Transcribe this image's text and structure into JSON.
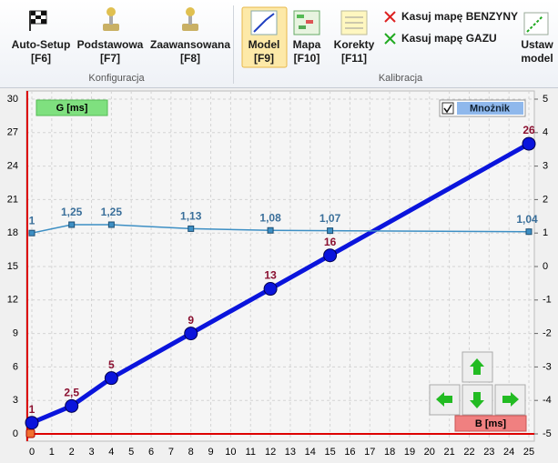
{
  "ribbon": {
    "groups": [
      {
        "label": "Konfiguracja",
        "buttons": [
          {
            "lines": [
              "Auto-Setup",
              "[F6]"
            ]
          },
          {
            "lines": [
              "Podstawowa",
              "[F7]"
            ]
          },
          {
            "lines": [
              "Zaawansowana",
              "[F8]"
            ]
          }
        ]
      },
      {
        "label": "Kalibracja",
        "buttons": [
          {
            "lines": [
              "Model",
              "[F9]"
            ],
            "selected": true
          },
          {
            "lines": [
              "Mapa",
              "[F10]"
            ]
          },
          {
            "lines": [
              "Korekty",
              "[F11]"
            ]
          },
          {
            "lines": [
              "Ustaw",
              "model"
            ]
          }
        ],
        "actions": [
          "Kasuj mapę BENZYNY",
          "Kasuj mapę GAZU"
        ]
      }
    ]
  },
  "chart_data": {
    "type": "line",
    "y_label": "G [ms]",
    "x_label": "B [ms]",
    "multiplier": {
      "label": "Mnożnik",
      "checked": true
    },
    "xlim": [
      0,
      25
    ],
    "xticks": [
      0,
      1,
      2,
      3,
      4,
      5,
      6,
      7,
      8,
      9,
      10,
      11,
      12,
      13,
      14,
      15,
      16,
      17,
      18,
      19,
      20,
      21,
      22,
      23,
      24,
      25
    ],
    "ylim": [
      0,
      30
    ],
    "yticks": [
      0,
      3,
      6,
      9,
      12,
      15,
      18,
      21,
      24,
      27,
      30
    ],
    "y2lim": [
      -5,
      5
    ],
    "y2ticks": [
      -5,
      -4,
      -3,
      -2,
      -1,
      0,
      1,
      2,
      3,
      4,
      5
    ],
    "grid": true,
    "series": [
      {
        "color": "#0a14dc",
        "label_color": "#8a1030",
        "x": [
          0,
          2,
          4,
          8,
          12,
          15,
          25
        ],
        "values": [
          1,
          2.5,
          5,
          9,
          13,
          16,
          26
        ],
        "value_labels": [
          "1",
          "2,5",
          "5",
          "9",
          "13",
          "16",
          "26"
        ]
      },
      {
        "color": "#3d8fc4",
        "label_color": "#3a6f9a",
        "axis": "y2",
        "x": [
          0,
          2,
          4,
          8,
          12,
          15,
          25
        ],
        "values": [
          1,
          1.25,
          1.25,
          1.13,
          1.08,
          1.07,
          1.04
        ],
        "value_labels": [
          "1",
          "1,25",
          "1,25",
          "1,13",
          "1,08",
          "1,07",
          "1,04"
        ]
      }
    ]
  }
}
